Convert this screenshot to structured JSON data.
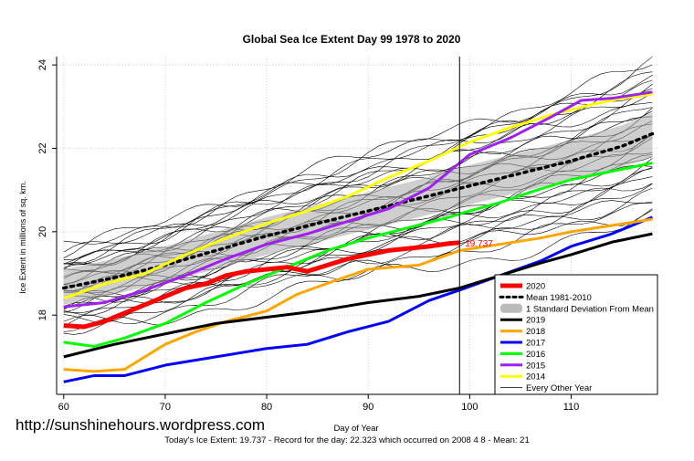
{
  "watermark": "http://sunshinehours.wordpress.com",
  "footer": "Today's Ice Extent: 19.737  - Record for the day: 22.323 which occurred on 2008 4 8  - Mean: 21",
  "chart_data": {
    "type": "line",
    "title": "Global Sea Ice Extent Day 99 1978 to 2020",
    "xlabel": "Day of Year",
    "ylabel": "Ice Extent in millions of sq. km.",
    "xlim": [
      59.3,
      118.5
    ],
    "ylim": [
      16.1,
      24.2
    ],
    "x_ticks": [
      60,
      70,
      80,
      90,
      100,
      110
    ],
    "y_ticks": [
      18,
      20,
      22,
      24
    ],
    "grid": true,
    "current_day": 99,
    "current_value_label": "19.737",
    "legend_position": "bottom-right",
    "legend_entries": [
      {
        "label": "2020",
        "color": "#ff0000",
        "style": "solid-thick"
      },
      {
        "label": "Mean 1981-2010",
        "color": "#000000",
        "style": "dotted"
      },
      {
        "label": "1 Standard Deviation From Mean",
        "color": "#bbbbbb",
        "style": "band"
      },
      {
        "label": "2019",
        "color": "#000000",
        "style": "solid"
      },
      {
        "label": "2018",
        "color": "#ffa500",
        "style": "solid"
      },
      {
        "label": "2017",
        "color": "#0000ff",
        "style": "solid"
      },
      {
        "label": "2016",
        "color": "#00ff00",
        "style": "solid"
      },
      {
        "label": "2015",
        "color": "#a020f0",
        "style": "solid"
      },
      {
        "label": "2014",
        "color": "#ffff00",
        "style": "solid"
      },
      {
        "label": "Every Other Year",
        "color": "#000000",
        "style": "thin"
      }
    ],
    "mean_series": {
      "x": [
        60,
        65,
        70,
        75,
        80,
        85,
        90,
        95,
        100,
        105,
        110,
        115,
        118
      ],
      "values": [
        18.65,
        18.9,
        19.2,
        19.55,
        19.9,
        20.2,
        20.5,
        20.8,
        21.1,
        21.4,
        21.7,
        22.05,
        22.35
      ]
    },
    "std_band": {
      "x": [
        60,
        65,
        70,
        75,
        80,
        85,
        90,
        95,
        100,
        105,
        110,
        115,
        118
      ],
      "lower": [
        18.25,
        18.5,
        18.8,
        19.1,
        19.45,
        19.75,
        20.05,
        20.35,
        20.65,
        20.95,
        21.25,
        21.55,
        21.8
      ],
      "upper": [
        19.1,
        19.35,
        19.65,
        20.0,
        20.35,
        20.65,
        20.95,
        21.25,
        21.6,
        21.9,
        22.2,
        22.55,
        22.85
      ]
    },
    "series": [
      {
        "name": "2020",
        "color": "#ff0000",
        "width": 5,
        "x": [
          60,
          62,
          64,
          66,
          68,
          70,
          72,
          74,
          76,
          78,
          80,
          82,
          84,
          86,
          88,
          90,
          92,
          94,
          96,
          98,
          99
        ],
        "values": [
          17.75,
          17.72,
          17.85,
          18.05,
          18.25,
          18.45,
          18.65,
          18.75,
          18.95,
          19.05,
          19.1,
          19.15,
          19.05,
          19.2,
          19.35,
          19.45,
          19.55,
          19.6,
          19.65,
          19.72,
          19.737
        ]
      },
      {
        "name": "2019",
        "color": "#000000",
        "width": 3,
        "x": [
          60,
          65,
          70,
          75,
          80,
          85,
          90,
          95,
          99,
          103,
          107,
          110,
          114,
          118
        ],
        "values": [
          17.0,
          17.3,
          17.55,
          17.8,
          17.95,
          18.1,
          18.3,
          18.45,
          18.65,
          18.95,
          19.25,
          19.45,
          19.75,
          19.95
        ]
      },
      {
        "name": "2018",
        "color": "#ffa500",
        "width": 3,
        "x": [
          60,
          63,
          66,
          68,
          70,
          73,
          76,
          80,
          83,
          87,
          90,
          95,
          99,
          103,
          107,
          110,
          114,
          118
        ],
        "values": [
          16.7,
          16.65,
          16.7,
          17.0,
          17.3,
          17.6,
          17.85,
          18.1,
          18.5,
          18.85,
          19.1,
          19.2,
          19.55,
          19.7,
          19.85,
          20.0,
          20.15,
          20.3
        ]
      },
      {
        "name": "2017",
        "color": "#0000ff",
        "width": 3,
        "x": [
          60,
          63,
          66,
          70,
          75,
          80,
          84,
          88,
          92,
          96,
          99,
          103,
          107,
          110,
          114,
          118
        ],
        "values": [
          16.4,
          16.55,
          16.55,
          16.8,
          17.0,
          17.2,
          17.3,
          17.6,
          17.85,
          18.35,
          18.6,
          18.95,
          19.3,
          19.65,
          19.95,
          20.35
        ]
      },
      {
        "name": "2016",
        "color": "#00ff00",
        "width": 3,
        "x": [
          60,
          63,
          66,
          70,
          74,
          78,
          82,
          86,
          90,
          94,
          98,
          100,
          103,
          106,
          110,
          114,
          118
        ],
        "values": [
          17.35,
          17.25,
          17.45,
          17.8,
          18.3,
          18.75,
          19.15,
          19.55,
          19.85,
          20.1,
          20.35,
          20.5,
          20.7,
          20.95,
          21.25,
          21.45,
          21.65
        ]
      },
      {
        "name": "2015",
        "color": "#a020f0",
        "width": 3,
        "x": [
          60,
          64,
          68,
          72,
          76,
          80,
          84,
          88,
          92,
          96,
          100,
          104,
          108,
          111,
          114,
          118
        ],
        "values": [
          18.2,
          18.3,
          18.6,
          18.95,
          19.35,
          19.7,
          19.95,
          20.25,
          20.55,
          21.05,
          21.85,
          22.25,
          22.75,
          23.15,
          23.2,
          23.35
        ]
      },
      {
        "name": "2014",
        "color": "#ffff00",
        "width": 3,
        "x": [
          60,
          64,
          68,
          72,
          76,
          80,
          84,
          88,
          92,
          96,
          100,
          104,
          108,
          112,
          115,
          118
        ],
        "values": [
          18.4,
          18.75,
          19.0,
          19.45,
          19.85,
          20.2,
          20.5,
          20.85,
          21.3,
          21.7,
          22.15,
          22.5,
          22.8,
          23.05,
          23.2,
          23.3
        ]
      },
      {
        "name": "Every Other Year",
        "color": "#000000",
        "width": 0.6,
        "x": [
          60,
          70,
          80,
          90,
          100,
          110,
          118
        ],
        "values": [
          19.0,
          19.6,
          20.1,
          20.7,
          21.4,
          22.0,
          22.4
        ]
      }
    ]
  }
}
